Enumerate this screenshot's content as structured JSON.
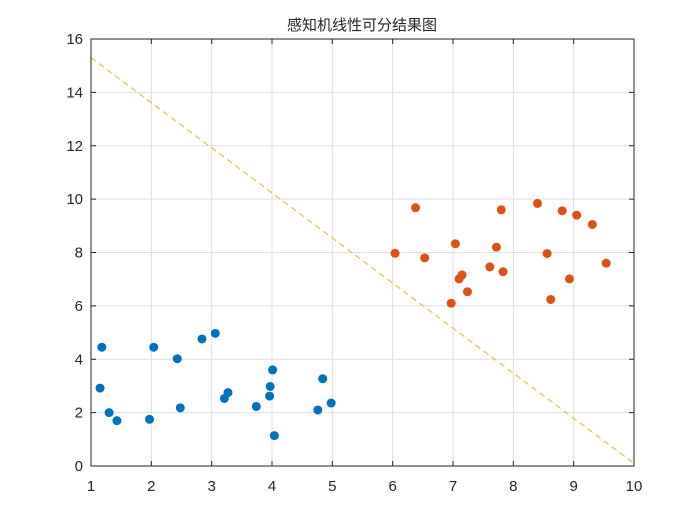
{
  "chart_data": {
    "type": "scatter",
    "title": "感知机线性可分结果图",
    "xlabel": "",
    "ylabel": "",
    "xlim": [
      1,
      10
    ],
    "ylim": [
      0,
      16
    ],
    "xticks": [
      1,
      2,
      3,
      4,
      5,
      6,
      7,
      8,
      9,
      10
    ],
    "yticks": [
      0,
      2,
      4,
      6,
      8,
      10,
      12,
      14,
      16
    ],
    "grid": true,
    "series": [
      {
        "color": "#0072BD",
        "points": [
          [
            1.18,
            4.45
          ],
          [
            1.15,
            2.92
          ],
          [
            1.3,
            2.0
          ],
          [
            1.43,
            1.7
          ],
          [
            1.97,
            1.75
          ],
          [
            2.04,
            4.45
          ],
          [
            2.43,
            4.02
          ],
          [
            2.48,
            2.18
          ],
          [
            2.84,
            4.76
          ],
          [
            3.06,
            4.97
          ],
          [
            3.21,
            2.53
          ],
          [
            3.27,
            2.75
          ],
          [
            3.74,
            2.23
          ],
          [
            3.96,
            2.62
          ],
          [
            3.97,
            2.98
          ],
          [
            4.01,
            3.6
          ],
          [
            4.04,
            1.14
          ],
          [
            4.76,
            2.1
          ],
          [
            4.84,
            3.27
          ],
          [
            4.98,
            2.36
          ]
        ]
      },
      {
        "color": "#D95319",
        "points": [
          [
            6.04,
            7.97
          ],
          [
            6.38,
            9.68
          ],
          [
            6.53,
            7.8
          ],
          [
            6.97,
            6.1
          ],
          [
            7.04,
            8.33
          ],
          [
            7.1,
            7.01
          ],
          [
            7.15,
            7.16
          ],
          [
            7.24,
            6.53
          ],
          [
            7.61,
            7.46
          ],
          [
            7.72,
            8.2
          ],
          [
            7.8,
            9.6
          ],
          [
            7.83,
            7.28
          ],
          [
            8.4,
            9.84
          ],
          [
            8.56,
            7.96
          ],
          [
            8.62,
            6.24
          ],
          [
            8.81,
            9.56
          ],
          [
            8.93,
            7.01
          ],
          [
            9.05,
            9.4
          ],
          [
            9.31,
            9.05
          ],
          [
            9.54,
            7.6
          ]
        ]
      }
    ],
    "decision_boundary": {
      "style": "dashed",
      "color": "#EDB120",
      "points": [
        [
          1,
          15.3
        ],
        [
          10,
          0.1
        ]
      ]
    }
  }
}
